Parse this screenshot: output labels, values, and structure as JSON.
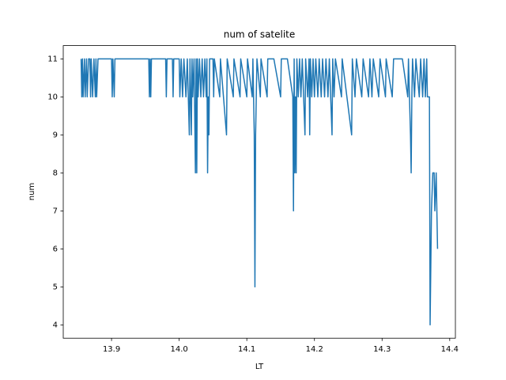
{
  "chart_data": {
    "type": "line",
    "title": "num of satelite",
    "x_label": "LT",
    "y_label": "num",
    "x": [
      13.855,
      13.856,
      13.857,
      13.858,
      13.86,
      13.861,
      13.863,
      13.864,
      13.866,
      13.868,
      13.869,
      13.87,
      13.872,
      13.874,
      13.876,
      13.877,
      13.878,
      13.88,
      13.9,
      13.901,
      13.902,
      13.904,
      13.905,
      13.955,
      13.956,
      13.957,
      13.958,
      13.959,
      13.98,
      13.981,
      13.982,
      13.99,
      13.991,
      13.992,
      14.0,
      14.001,
      14.003,
      14.005,
      14.007,
      14.01,
      14.012,
      14.015,
      14.016,
      14.018,
      14.019,
      14.02,
      14.022,
      14.024,
      14.025,
      14.026,
      14.027,
      14.028,
      14.03,
      14.032,
      14.034,
      14.036,
      14.038,
      14.04,
      14.041,
      14.042,
      14.043,
      14.044,
      14.045,
      14.05,
      14.051,
      14.052,
      14.06,
      14.061,
      14.07,
      14.071,
      14.08,
      14.081,
      14.09,
      14.091,
      14.1,
      14.101,
      14.108,
      14.109,
      14.111,
      14.112,
      14.113,
      14.114,
      14.115,
      14.12,
      14.121,
      14.13,
      14.131,
      14.14,
      14.15,
      14.151,
      14.16,
      14.168,
      14.169,
      14.17,
      14.171,
      14.172,
      14.173,
      14.174,
      14.176,
      14.178,
      14.18,
      14.182,
      14.186,
      14.187,
      14.19,
      14.192,
      14.193,
      14.194,
      14.196,
      14.198,
      14.2,
      14.202,
      14.205,
      14.207,
      14.21,
      14.212,
      14.215,
      14.217,
      14.22,
      14.222,
      14.226,
      14.227,
      14.229,
      14.231,
      14.24,
      14.241,
      14.255,
      14.256,
      14.26,
      14.262,
      14.27,
      14.272,
      14.28,
      14.282,
      14.285,
      14.287,
      14.295,
      14.297,
      14.305,
      14.306,
      14.315,
      14.317,
      14.33,
      14.338,
      14.339,
      14.342,
      14.343,
      14.344,
      14.345,
      14.348,
      14.35,
      14.355,
      14.357,
      14.36,
      14.362,
      14.364,
      14.366,
      14.367,
      14.37,
      14.371,
      14.373,
      14.375,
      14.377,
      14.378,
      14.38,
      14.382
    ],
    "series": [
      {
        "color": "#1f77b4",
        "values": [
          11,
          10,
          11,
          10,
          11,
          10,
          11,
          10,
          11,
          11,
          10,
          11,
          10,
          11,
          10,
          11,
          10,
          11,
          11,
          10,
          11,
          10,
          11,
          11,
          10,
          11,
          10,
          11,
          11,
          10,
          11,
          11,
          10,
          11,
          11,
          10,
          11,
          10,
          11,
          10,
          11,
          9,
          11,
          9,
          11,
          10,
          11,
          8,
          11,
          8,
          11,
          10,
          11,
          10,
          11,
          10,
          11,
          10,
          11,
          8,
          10,
          9,
          11,
          11,
          10,
          11,
          10,
          11,
          9,
          11,
          10,
          11,
          10,
          11,
          10,
          11,
          10,
          11,
          9,
          5,
          9,
          10,
          11,
          10,
          11,
          10,
          11,
          11,
          10,
          11,
          11,
          10,
          7,
          11,
          8,
          10,
          8,
          11,
          10,
          11,
          10,
          11,
          9,
          11,
          10,
          11,
          9,
          11,
          10,
          11,
          10,
          11,
          10,
          11,
          10,
          11,
          10,
          11,
          10,
          11,
          9,
          11,
          10,
          11,
          10,
          11,
          9,
          11,
          10,
          11,
          10,
          11,
          10,
          11,
          10,
          11,
          10,
          11,
          10,
          11,
          10,
          11,
          11,
          10,
          11,
          9,
          8,
          10,
          11,
          10,
          11,
          10,
          11,
          10,
          11,
          10,
          11,
          10,
          10,
          4,
          7,
          8,
          8,
          7,
          8,
          6
        ]
      }
    ],
    "xlim": [
      13.8286,
      14.4084
    ],
    "ylim": [
      3.65,
      11.35
    ],
    "xticks": [
      13.9,
      {
        "value": 14,
        "label": "14.0"
      },
      14.1,
      14.2,
      14.3,
      14.4
    ],
    "yticks": [
      4,
      5,
      6,
      7,
      8,
      9,
      10,
      11
    ]
  }
}
